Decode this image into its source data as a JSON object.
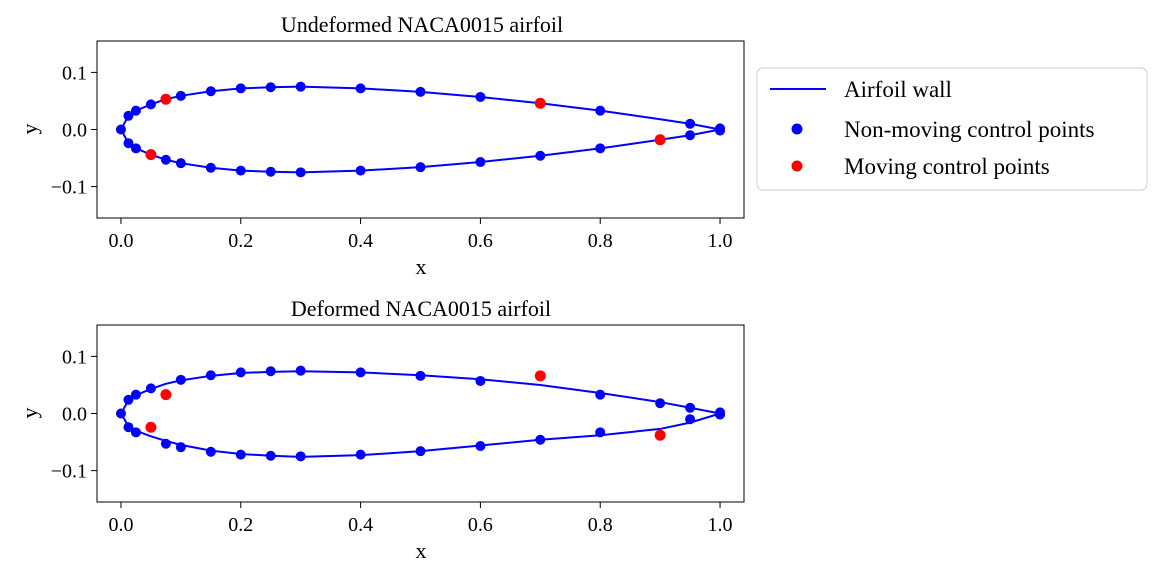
{
  "colors": {
    "wall": "#0000ff",
    "fixed": "#0000ff",
    "moving": "#ff0000"
  },
  "legend": {
    "entries": [
      {
        "label": "Airfoil wall",
        "kind": "line",
        "color": "#0000ff"
      },
      {
        "label": "Non-moving control points",
        "kind": "marker",
        "color": "#0000ff"
      },
      {
        "label": "Moving control points",
        "kind": "marker",
        "color": "#ff0000"
      }
    ]
  },
  "chart_data": [
    {
      "type": "line",
      "title": "Undeformed NACA0015 airfoil",
      "xlabel": "x",
      "ylabel": "y",
      "xlim": [
        -0.04,
        1.04
      ],
      "ylim": [
        -0.155,
        0.155
      ],
      "xticks": [
        0.0,
        0.2,
        0.4,
        0.6,
        0.8,
        1.0
      ],
      "xtick_labels": [
        "0.0",
        "0.2",
        "0.4",
        "0.6",
        "0.8",
        "1.0"
      ],
      "yticks": [
        -0.1,
        0.0,
        0.1
      ],
      "ytick_labels": [
        "−0.1",
        "0.0",
        "0.1"
      ],
      "series": [
        {
          "name": "Airfoil wall",
          "kind": "line",
          "x": [
            1.0,
            0.95,
            0.9,
            0.8,
            0.7,
            0.6,
            0.5,
            0.4,
            0.3,
            0.25,
            0.2,
            0.15,
            0.1,
            0.075,
            0.05,
            0.025,
            0.0125,
            0.0,
            0.0125,
            0.025,
            0.05,
            0.075,
            0.1,
            0.15,
            0.2,
            0.25,
            0.3,
            0.4,
            0.5,
            0.6,
            0.7,
            0.8,
            0.9,
            0.95,
            1.0
          ],
          "y": [
            0.0,
            0.01,
            0.018,
            0.033,
            0.046,
            0.057,
            0.066,
            0.072,
            0.075,
            0.074,
            0.072,
            0.067,
            0.059,
            0.053,
            0.044,
            0.033,
            0.024,
            0.0,
            -0.024,
            -0.033,
            -0.044,
            -0.053,
            -0.059,
            -0.067,
            -0.072,
            -0.074,
            -0.075,
            -0.072,
            -0.066,
            -0.057,
            -0.046,
            -0.033,
            -0.018,
            -0.01,
            0.0
          ]
        },
        {
          "name": "Non-moving control points",
          "kind": "scatter",
          "x": [
            1.0,
            0.95,
            0.8,
            0.6,
            0.5,
            0.4,
            0.3,
            0.25,
            0.2,
            0.15,
            0.1,
            0.05,
            0.025,
            0.0125,
            0.0,
            0.0125,
            0.025,
            0.075,
            0.1,
            0.15,
            0.2,
            0.25,
            0.3,
            0.4,
            0.5,
            0.6,
            0.7,
            0.8,
            0.95,
            1.0
          ],
          "y": [
            0.002,
            0.01,
            0.033,
            0.057,
            0.066,
            0.072,
            0.075,
            0.074,
            0.072,
            0.067,
            0.059,
            0.044,
            0.033,
            0.024,
            0.0,
            -0.024,
            -0.033,
            -0.053,
            -0.059,
            -0.067,
            -0.072,
            -0.074,
            -0.075,
            -0.072,
            -0.066,
            -0.057,
            -0.046,
            -0.033,
            -0.01,
            -0.002
          ]
        },
        {
          "name": "Moving control points",
          "kind": "scatter",
          "x": [
            0.075,
            0.7,
            0.05,
            0.9
          ],
          "y": [
            0.053,
            0.046,
            -0.044,
            -0.018
          ]
        }
      ]
    },
    {
      "type": "line",
      "title": "Deformed NACA0015 airfoil",
      "xlabel": "x",
      "ylabel": "y",
      "xlim": [
        -0.04,
        1.04
      ],
      "ylim": [
        -0.155,
        0.155
      ],
      "xticks": [
        0.0,
        0.2,
        0.4,
        0.6,
        0.8,
        1.0
      ],
      "xtick_labels": [
        "0.0",
        "0.2",
        "0.4",
        "0.6",
        "0.8",
        "1.0"
      ],
      "yticks": [
        -0.1,
        0.0,
        0.1
      ],
      "ytick_labels": [
        "−0.1",
        "0.0",
        "0.1"
      ],
      "series": [
        {
          "name": "Airfoil wall",
          "kind": "line",
          "x": [
            1.0,
            0.95,
            0.9,
            0.8,
            0.7,
            0.6,
            0.5,
            0.4,
            0.3,
            0.25,
            0.2,
            0.15,
            0.1,
            0.075,
            0.05,
            0.025,
            0.0125,
            0.0,
            0.0125,
            0.025,
            0.05,
            0.075,
            0.1,
            0.15,
            0.2,
            0.25,
            0.3,
            0.4,
            0.5,
            0.6,
            0.7,
            0.8,
            0.9,
            0.95,
            1.0
          ],
          "y": [
            0.0,
            0.01,
            0.02,
            0.036,
            0.05,
            0.06,
            0.067,
            0.072,
            0.074,
            0.073,
            0.071,
            0.066,
            0.058,
            0.052,
            0.043,
            0.032,
            0.023,
            0.0,
            -0.022,
            -0.03,
            -0.04,
            -0.048,
            -0.055,
            -0.065,
            -0.071,
            -0.074,
            -0.076,
            -0.073,
            -0.066,
            -0.056,
            -0.046,
            -0.038,
            -0.027,
            -0.016,
            0.0
          ]
        },
        {
          "name": "Non-moving control points",
          "kind": "scatter",
          "x": [
            1.0,
            0.95,
            0.9,
            0.8,
            0.6,
            0.5,
            0.4,
            0.3,
            0.25,
            0.2,
            0.15,
            0.1,
            0.05,
            0.025,
            0.0125,
            0.0,
            0.0125,
            0.025,
            0.075,
            0.1,
            0.15,
            0.2,
            0.25,
            0.3,
            0.4,
            0.5,
            0.6,
            0.7,
            0.8,
            0.95,
            1.0
          ],
          "y": [
            0.002,
            0.01,
            0.018,
            0.033,
            0.057,
            0.066,
            0.072,
            0.075,
            0.074,
            0.072,
            0.067,
            0.059,
            0.044,
            0.033,
            0.024,
            0.0,
            -0.024,
            -0.033,
            -0.053,
            -0.059,
            -0.067,
            -0.072,
            -0.074,
            -0.075,
            -0.072,
            -0.066,
            -0.057,
            -0.046,
            -0.033,
            -0.01,
            -0.002
          ]
        },
        {
          "name": "Moving control points",
          "kind": "scatter",
          "x": [
            0.075,
            0.7,
            0.05,
            0.9
          ],
          "y": [
            0.033,
            0.066,
            -0.024,
            -0.038
          ]
        }
      ]
    }
  ]
}
